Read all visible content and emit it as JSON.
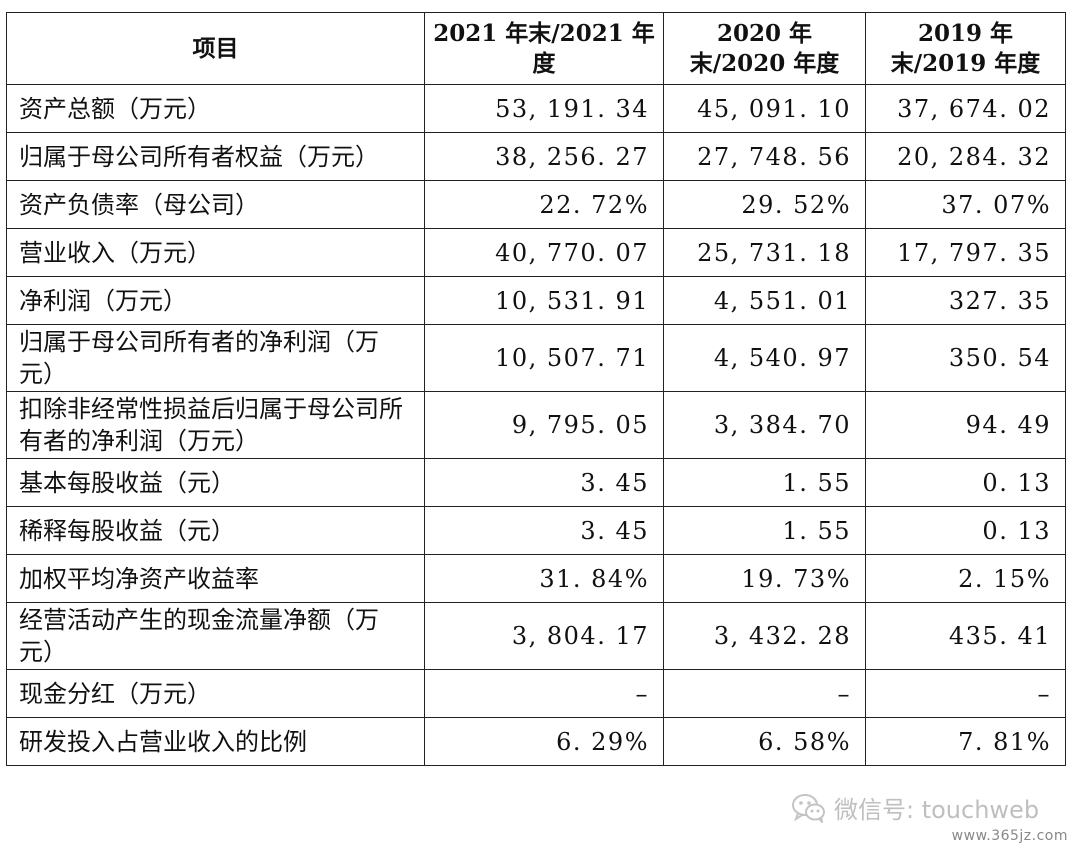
{
  "table": {
    "headers": [
      "项目",
      "2021 年末/2021 年度",
      "2020 年末/2020 年度",
      "2019 年末/2019 年度"
    ],
    "rows": [
      {
        "label": "资产总额（万元）",
        "values": [
          "53, 191. 34",
          "45, 091. 10",
          "37, 674. 02"
        ]
      },
      {
        "label": "归属于母公司所有者权益（万元）",
        "values": [
          "38, 256. 27",
          "27, 748. 56",
          "20, 284. 32"
        ]
      },
      {
        "label": "资产负债率（母公司）",
        "values": [
          "22. 72%",
          "29. 52%",
          "37. 07%"
        ]
      },
      {
        "label": "营业收入（万元）",
        "values": [
          "40, 770. 07",
          "25, 731. 18",
          "17, 797. 35"
        ]
      },
      {
        "label": "净利润（万元）",
        "values": [
          "10, 531. 91",
          "4, 551. 01",
          "327. 35"
        ]
      },
      {
        "label": "归属于母公司所有者的净利润（万元）",
        "values": [
          "10, 507. 71",
          "4, 540. 97",
          "350. 54"
        ]
      },
      {
        "label": "扣除非经常性损益后归属于母公司所有者的净利润（万元）",
        "values": [
          "9, 795. 05",
          "3, 384. 70",
          "94. 49"
        ]
      },
      {
        "label": "基本每股收益（元）",
        "values": [
          "3. 45",
          "1. 55",
          "0. 13"
        ]
      },
      {
        "label": "稀释每股收益（元）",
        "values": [
          "3. 45",
          "1. 55",
          "0. 13"
        ]
      },
      {
        "label": "加权平均净资产收益率",
        "values": [
          "31. 84%",
          "19. 73%",
          "2. 15%"
        ]
      },
      {
        "label": "经营活动产生的现金流量净额（万元）",
        "values": [
          "3, 804. 17",
          "3, 432. 28",
          "435. 41"
        ]
      },
      {
        "label": "现金分红（万元）",
        "values": [
          "–",
          "–",
          "–"
        ]
      },
      {
        "label": "研发投入占营业收入的比例",
        "values": [
          "6. 29%",
          "6. 58%",
          "7. 81%"
        ]
      }
    ]
  },
  "watermark": {
    "text": "微信号: touchweb",
    "icon": "wechat-icon"
  },
  "site": "www.365jz.com"
}
